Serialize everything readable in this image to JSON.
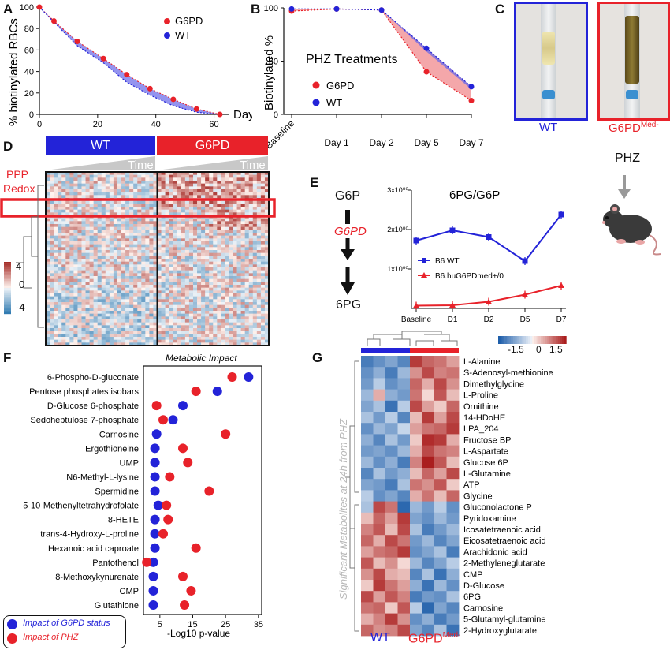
{
  "panel_labels": [
    "A",
    "B",
    "C",
    "D",
    "E",
    "F",
    "G"
  ],
  "colors": {
    "g6pd": "#e8222a",
    "wt": "#2323d8",
    "heat_low": "#2166ac",
    "heat_high": "#b2182b"
  },
  "chart_data": [
    {
      "id": "A",
      "type": "line",
      "title": "",
      "xlabel": "Days",
      "ylabel": "% biotinylated RBCs",
      "xticks": [
        0,
        20,
        40,
        60
      ],
      "yticks": [
        0,
        20,
        40,
        60,
        80,
        100
      ],
      "xlim": [
        0,
        65
      ],
      "ylim": [
        0,
        100
      ],
      "series": [
        {
          "name": "G6PD",
          "color": "#e8222a",
          "x": [
            0,
            5,
            13,
            22,
            30,
            38,
            46,
            54,
            62
          ],
          "y": [
            100,
            87,
            68,
            52,
            37,
            24,
            14,
            5,
            0
          ]
        },
        {
          "name": "WT",
          "color": "#2323d8",
          "x": [
            0,
            5,
            13,
            22,
            30,
            38,
            46,
            54,
            62
          ],
          "y": [
            100,
            86,
            64,
            48,
            30,
            18,
            8,
            2,
            0
          ]
        }
      ],
      "legend": "top-right",
      "grid": false
    },
    {
      "id": "B",
      "type": "line",
      "title": "PHZ Treatments",
      "xlabel": "",
      "ylabel": "Biotinylated %",
      "categories": [
        "Baseline",
        "Day 1",
        "Day 2",
        "Day 5",
        "Day 7"
      ],
      "yticks": [
        0,
        50,
        100
      ],
      "ylim": [
        0,
        100
      ],
      "series": [
        {
          "name": "G6PD",
          "color": "#e8222a",
          "values": [
            97,
            99,
            98,
            40,
            13
          ]
        },
        {
          "name": "WT",
          "color": "#2323d8",
          "values": [
            99,
            99,
            98,
            62,
            26
          ]
        }
      ],
      "legend": "center-right",
      "grid": false
    },
    {
      "id": "D",
      "type": "heatmap",
      "groups": [
        "WT",
        "G6PD"
      ],
      "time_label": "Time",
      "row_annotation": [
        "PPP",
        "Redox"
      ],
      "scale": {
        "min": -4,
        "mid": 0,
        "max": 4,
        "labels": [
          "4",
          "0",
          "-4"
        ]
      }
    },
    {
      "id": "E",
      "type": "line",
      "title": "6PG/G6P",
      "categories": [
        "Baseline",
        "D1",
        "D2",
        "D5",
        "D7"
      ],
      "yticks": [
        "1x10⁰⁰",
        "2x10⁰⁰",
        "3x10⁰⁰"
      ],
      "ylim": [
        0,
        3
      ],
      "series": [
        {
          "name": "B6 WT",
          "color": "#2323d8",
          "values": [
            1.72,
            1.98,
            1.81,
            1.2,
            2.38
          ]
        },
        {
          "name": "B6.huG6PDmed+/0",
          "color": "#e8222a",
          "values": [
            0.07,
            0.08,
            0.17,
            0.35,
            0.58
          ]
        }
      ],
      "legend": "center-left"
    },
    {
      "id": "F",
      "type": "scatter",
      "title": "Metabolic Impact",
      "xlabel": "-Log10 p-value",
      "xticks": [
        5,
        15,
        25,
        35
      ],
      "xlim": [
        0,
        36
      ],
      "categories": [
        "6-Phospho-D-gluconate",
        "Pentose phosphates isobars",
        "D-Glucose 6-phosphate",
        "Sedoheptulose 7-phosphate",
        "Carnosine",
        "Ergothioneine",
        "UMP",
        "N6-Methyl-L-lysine",
        "Spermidine",
        "5-10-Methenyltetrahydrofolate",
        "8-HETE",
        "trans-4-Hydroxy-L-proline",
        "Hexanoic acid caproate",
        "Pantothenol",
        "8-Methoxykynurenate",
        "CMP",
        "Glutathione"
      ],
      "series": [
        {
          "name": "Impact of G6PD status",
          "color": "#2323d8",
          "values": [
            32,
            22.5,
            12,
            9,
            4,
            3.5,
            3.5,
            3.5,
            3.5,
            4.5,
            3.5,
            3.5,
            3.5,
            3,
            3,
            3,
            3
          ]
        },
        {
          "name": "Impact of PHZ",
          "color": "#e8222a",
          "values": [
            27,
            16,
            4,
            6,
            25,
            12,
            13.5,
            8,
            20,
            7,
            7.5,
            6,
            16,
            1,
            12,
            14.5,
            12.5
          ]
        }
      ],
      "legend": "bottom-left"
    },
    {
      "id": "G",
      "type": "heatmap",
      "ylabel": "Significant Metabolites at 24h from PHZ",
      "column_groups": [
        "WT",
        "G6PD"
      ],
      "column_group_suffix": "Med-",
      "scale": {
        "min": -1.5,
        "max": 1.5,
        "labels": [
          "-1.5",
          "0",
          "1.5"
        ]
      },
      "rows": [
        "L-Alanine",
        "S-Adenosyl-methionine",
        "Dimethylglycine",
        "L-Proline",
        "Ornithine",
        "14-HDoHE",
        "LPA_204",
        "Fructose BP",
        "L-Aspartate",
        "Glucose 6P",
        "L-Glutamine",
        "ATP",
        "Glycine",
        "Gluconolactone P",
        "Pyridoxamine",
        "Icosatetraenoic acid",
        "Eicosatetraenoic acid",
        "Arachidonic acid",
        "2-Methyleneglutarate",
        "CMP",
        "D-Glucose",
        "6PG",
        "Carnosine",
        "5-Glutamyl-glutamine",
        "2-Hydroxyglutarate"
      ],
      "matrix": [
        [
          -1.2,
          -1.0,
          -0.8,
          -1.1,
          1.3,
          1.0,
          0.9,
          0.6
        ],
        [
          -1.0,
          -0.7,
          -1.2,
          -0.6,
          0.7,
          1.2,
          0.8,
          0.9
        ],
        [
          -0.9,
          -0.4,
          -1.0,
          -0.8,
          1.0,
          0.5,
          1.2,
          0.7
        ],
        [
          -0.6,
          0.5,
          -0.7,
          -0.9,
          0.9,
          0.2,
          1.1,
          0.4
        ],
        [
          -0.8,
          -0.5,
          -1.3,
          -0.4,
          1.2,
          0.6,
          0.3,
          1.0
        ],
        [
          -0.5,
          -0.9,
          -0.4,
          -1.1,
          0.4,
          1.3,
          0.6,
          1.2
        ],
        [
          -1.0,
          -0.6,
          -0.8,
          -0.3,
          0.6,
          0.9,
          1.0,
          1.3
        ],
        [
          -0.7,
          -1.1,
          -0.5,
          -0.9,
          0.3,
          1.4,
          1.3,
          0.5
        ],
        [
          -0.9,
          -0.8,
          -1.0,
          -0.6,
          0.5,
          1.2,
          0.9,
          0.8
        ],
        [
          -0.6,
          -1.0,
          -0.7,
          -1.2,
          0.8,
          1.5,
          1.1,
          0.4
        ],
        [
          -1.1,
          -0.5,
          -0.9,
          -0.7,
          0.4,
          1.0,
          0.6,
          1.2
        ],
        [
          -0.8,
          -0.9,
          -1.2,
          -0.5,
          0.9,
          0.7,
          1.1,
          0.3
        ],
        [
          -0.4,
          -1.0,
          -0.8,
          -1.1,
          0.5,
          0.9,
          0.4,
          1.0
        ],
        [
          -0.5,
          1.2,
          0.9,
          -1.4,
          -0.6,
          -0.9,
          -0.4,
          -1.0
        ],
        [
          0.4,
          1.0,
          0.6,
          1.3,
          -0.8,
          -1.0,
          -0.6,
          -0.9
        ],
        [
          0.8,
          1.1,
          0.4,
          1.2,
          -0.5,
          -1.2,
          -0.9,
          -0.6
        ],
        [
          1.0,
          0.5,
          1.2,
          0.9,
          -0.9,
          -0.6,
          -1.1,
          -0.8
        ],
        [
          0.6,
          0.9,
          1.0,
          1.3,
          -1.0,
          -0.8,
          -0.5,
          -1.2
        ],
        [
          1.1,
          0.4,
          0.7,
          0.2,
          -0.6,
          -1.1,
          -0.8,
          -0.4
        ],
        [
          0.7,
          1.2,
          0.5,
          0.4,
          -1.1,
          -0.5,
          -1.3,
          -0.7
        ],
        [
          0.3,
          1.3,
          0.9,
          0.6,
          -0.7,
          -1.3,
          -0.6,
          -1.0
        ],
        [
          1.2,
          0.6,
          1.1,
          0.8,
          -1.2,
          -0.9,
          -1.0,
          -0.5
        ],
        [
          0.9,
          1.0,
          0.3,
          1.1,
          -0.4,
          -1.4,
          -0.8,
          -1.1
        ],
        [
          0.5,
          0.8,
          1.3,
          0.7,
          -1.0,
          -0.7,
          -1.2,
          -0.9
        ],
        [
          1.0,
          0.7,
          0.8,
          1.2,
          -0.8,
          -1.1,
          -0.5,
          -1.3
        ]
      ]
    }
  ],
  "panelC": {
    "wt_label": "WT",
    "g6pd_label": "G6PD",
    "g6pd_suffix": "Med-",
    "treatment": "PHZ"
  },
  "panelE": {
    "left_top": "G6P",
    "left_mid": "G6PD",
    "left_bottom": "6PG"
  }
}
